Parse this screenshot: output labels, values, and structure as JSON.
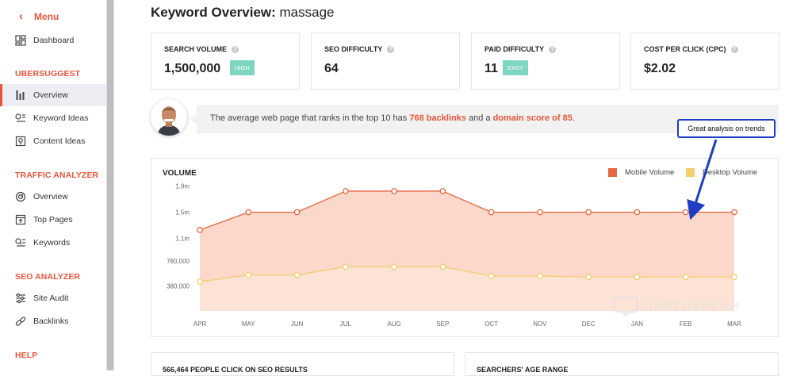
{
  "sidebar": {
    "menu_label": "Menu",
    "dashboard": "Dashboard",
    "sections": [
      {
        "heading": "UBERSUGGEST",
        "items": [
          "Overview",
          "Keyword Ideas",
          "Content Ideas"
        ]
      },
      {
        "heading": "TRAFFIC ANALYZER",
        "items": [
          "Overview",
          "Top Pages",
          "Keywords"
        ]
      },
      {
        "heading": "SEO ANALYZER",
        "items": [
          "Site Audit",
          "Backlinks"
        ]
      },
      {
        "heading": "HELP",
        "items": []
      }
    ],
    "active_item": "Overview"
  },
  "header": {
    "title_prefix": "Keyword Overview:",
    "keyword": "massage"
  },
  "metrics": [
    {
      "label": "SEARCH VOLUME",
      "value": "1,500,000",
      "badge": "HIGH"
    },
    {
      "label": "SEO DIFFICULTY",
      "value": "64"
    },
    {
      "label": "PAID DIFFICULTY",
      "value": "11",
      "badge": "EASY"
    },
    {
      "label": "COST PER CLICK (CPC)",
      "value": "$2.02"
    }
  ],
  "insight": {
    "pre": "The average web page that ranks in the top 10 has",
    "backlinks": "768 backlinks",
    "mid": "and a",
    "domain": "domain score of 85",
    "post": "."
  },
  "annotation": "Great analysis on trends",
  "volume_card": {
    "title": "VOLUME"
  },
  "chart_data": {
    "type": "area",
    "categories": [
      "APR",
      "MAY",
      "JUN",
      "JUL",
      "AUG",
      "SEP",
      "OCT",
      "NOV",
      "DEC",
      "JAN",
      "FEB",
      "MAR"
    ],
    "y_ticks": [
      {
        "value": 1900000,
        "label": "1.9m"
      },
      {
        "value": 1500000,
        "label": "1.5m"
      },
      {
        "value": 1100000,
        "label": "1.1m"
      },
      {
        "value": 760000,
        "label": "760,000"
      },
      {
        "value": 380000,
        "label": "380,000"
      }
    ],
    "ylim": [
      0,
      2000000
    ],
    "legend_position": "top-right",
    "series": [
      {
        "name": "Mobile Volume",
        "color": "#e8663f",
        "fill": "#f9cbb7",
        "values": [
          1230000,
          1500000,
          1500000,
          1820000,
          1820000,
          1820000,
          1500000,
          1500000,
          1500000,
          1500000,
          1500000,
          1500000
        ]
      },
      {
        "name": "Desktop Volume",
        "color": "#f5cf6c",
        "fill": "#fce4d6",
        "values": [
          445000,
          545000,
          545000,
          670000,
          670000,
          670000,
          530000,
          530000,
          515000,
          515000,
          515000,
          515000
        ]
      }
    ]
  },
  "bottom_cards": [
    "566,464 PEOPLE CLICK ON SEO RESULTS",
    "SEARCHERS' AGE RANGE"
  ],
  "watermark": "ПАРТНЕРКИН"
}
